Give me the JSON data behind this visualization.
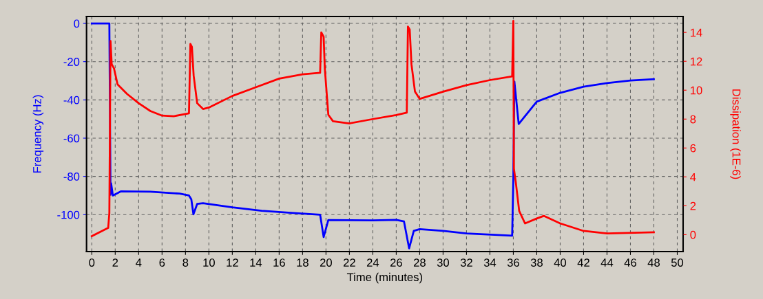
{
  "chart_data": {
    "type": "line",
    "xlabel": "Time (minutes)",
    "ylabel": "Frequency (Hz)",
    "y2label": "Dissipation (1E-6)",
    "xlim": [
      -0.45,
      50.5
    ],
    "xticks": [
      0,
      2,
      4,
      6,
      8,
      10,
      12,
      14,
      16,
      18,
      20,
      22,
      24,
      26,
      28,
      30,
      32,
      34,
      36,
      38,
      40,
      42,
      44,
      46,
      48,
      50
    ],
    "ylim": [
      -119.3,
      3.6
    ],
    "yticks": [
      -100,
      -80,
      -60,
      -40,
      -20,
      0
    ],
    "y2lim": [
      -1.17,
      15.1
    ],
    "y2ticks": [
      0,
      2,
      4,
      6,
      8,
      10,
      12,
      14
    ],
    "grid": true,
    "legend": false,
    "line_style": "solid",
    "series": [
      {
        "color": "#0000ff",
        "x": [
          0,
          0.5,
          1,
          1.5,
          1.6,
          1.65,
          1.8,
          2.5,
          5,
          7.5,
          8.3,
          8.5,
          8.68,
          9.0,
          9.5,
          12,
          14.5,
          17,
          19.5,
          19.8,
          20.2,
          24,
          26,
          26.66,
          27.1,
          27.5,
          28,
          30,
          32,
          35.9,
          36.0,
          36.09,
          36.46,
          38,
          40,
          42,
          44,
          46,
          48
        ],
        "values": [
          0,
          0,
          0,
          0,
          -89.6,
          -83.6,
          -90,
          -87.8,
          -88,
          -89,
          -90,
          -92,
          -99.8,
          -94.4,
          -94,
          -96.2,
          -98,
          -99,
          -100,
          -111.7,
          -102.8,
          -103,
          -102.7,
          -103.5,
          -117.6,
          -108.5,
          -107.6,
          -108.5,
          -109.8,
          -111,
          -81.2,
          -30.4,
          -52.6,
          -40.9,
          -36.3,
          -33.1,
          -31.2,
          -29.9,
          -29.2
        ]
      },
      {
        "color": "#ff0000",
        "axis": "y2",
        "x": [
          0,
          1.4,
          1.5,
          1.6,
          1.7,
          1.9,
          2.2,
          3,
          4,
          5,
          6,
          7,
          8.3,
          8.42,
          8.55,
          8.7,
          9,
          9.5,
          10,
          12,
          14,
          16,
          18,
          19.5,
          19.6,
          19.8,
          19.9,
          20.2,
          20.6,
          22,
          24,
          26,
          26.9,
          27.0,
          27.15,
          27.3,
          27.6,
          28,
          30,
          32,
          34,
          35.9,
          36.0,
          36.05,
          36.2,
          36.5,
          37,
          38,
          38.6,
          40,
          42,
          44,
          48
        ],
        "values": [
          -0.1,
          0.47,
          1.5,
          13.4,
          11.8,
          11.5,
          10.4,
          9.75,
          9.1,
          8.56,
          8.24,
          8.2,
          8.4,
          13.2,
          13.0,
          11.0,
          9.1,
          8.7,
          8.8,
          9.6,
          10.2,
          10.8,
          11.1,
          11.2,
          14.0,
          13.7,
          11.5,
          8.3,
          7.85,
          7.7,
          8.0,
          8.28,
          8.45,
          14.4,
          14.2,
          11.8,
          9.9,
          9.4,
          9.9,
          10.35,
          10.7,
          10.95,
          14.8,
          4.57,
          3.7,
          1.64,
          0.78,
          1.12,
          1.3,
          0.78,
          0.26,
          0.09,
          0.17
        ]
      }
    ]
  }
}
